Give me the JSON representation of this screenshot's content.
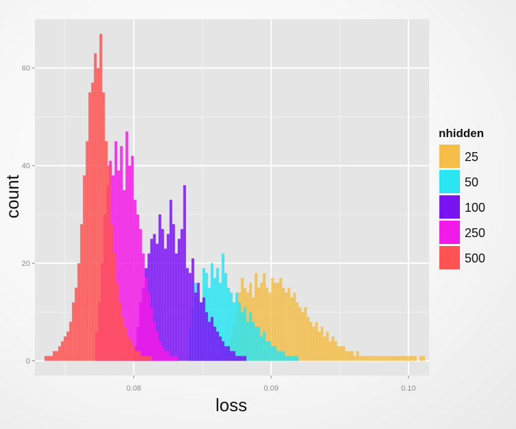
{
  "chart_data": {
    "type": "histogram",
    "xlabel": "loss",
    "ylabel": "count",
    "xlim": [
      0.0728,
      0.1015
    ],
    "ylim": [
      -3,
      70
    ],
    "x_ticks": [
      0.08,
      0.09,
      0.1
    ],
    "x_tick_labels": [
      "0.08",
      "0.09",
      "0.10"
    ],
    "y_ticks": [
      0,
      20,
      40,
      60
    ],
    "y_tick_labels": [
      "0",
      "20",
      "40",
      "60"
    ],
    "grid": true,
    "panel_background": "#e5e5e5",
    "legend": {
      "title": "nhidden",
      "position": "right",
      "entries": [
        "25",
        "50",
        "100",
        "250",
        "500"
      ]
    },
    "series": [
      {
        "name": "25",
        "color": "#F5BE48",
        "bin_start": 0.087,
        "bin_width": 0.0002,
        "values": [
          5,
          7,
          10,
          14,
          17,
          15,
          14,
          16,
          13,
          18,
          15,
          16,
          18,
          15,
          14,
          17,
          16,
          16,
          17,
          15,
          14,
          15,
          13,
          14,
          12,
          11,
          10,
          11,
          9,
          8,
          7,
          8,
          6,
          7,
          5,
          6,
          4,
          5,
          4,
          3,
          3,
          3,
          2,
          2,
          2,
          1,
          2,
          1,
          1,
          1,
          1,
          1,
          1,
          1,
          1,
          1,
          1,
          1,
          1,
          1,
          1,
          1,
          1,
          1,
          1,
          1,
          1,
          1,
          0,
          1,
          1
        ]
      },
      {
        "name": "50",
        "color": "#2CE5F2",
        "bin_start": 0.084,
        "bin_width": 0.0002,
        "values": [
          7,
          11,
          16,
          14,
          12,
          19,
          18,
          15,
          20,
          17,
          19,
          16,
          22,
          18,
          15,
          14,
          12,
          14,
          12,
          10,
          11,
          8,
          10,
          8,
          7,
          7,
          5,
          6,
          4,
          4,
          3,
          3,
          2,
          2,
          2,
          1,
          1,
          1,
          1,
          1
        ]
      },
      {
        "name": "100",
        "color": "#7A13F2",
        "bin_start": 0.08,
        "bin_width": 0.0002,
        "values": [
          3,
          7,
          12,
          15,
          19,
          22,
          25,
          26,
          24,
          30,
          27,
          23,
          26,
          33,
          28,
          22,
          25,
          27,
          36,
          19,
          18,
          21,
          14,
          16,
          12,
          13,
          10,
          8,
          9,
          7,
          6,
          5,
          4,
          3,
          3,
          2,
          2,
          1,
          1,
          1,
          1
        ]
      },
      {
        "name": "250",
        "color": "#F21AE8",
        "bin_start": 0.0772,
        "bin_width": 0.0002,
        "values": [
          6,
          12,
          20,
          30,
          36,
          41,
          38,
          45,
          39,
          44,
          35,
          47,
          40,
          42,
          33,
          30,
          27,
          22,
          17,
          14,
          11,
          8,
          6,
          4,
          3,
          2,
          2,
          1,
          1,
          1
        ]
      },
      {
        "name": "500",
        "color": "#FF5252",
        "bin_start": 0.0735,
        "bin_width": 0.0002,
        "values": [
          1,
          1,
          1,
          2,
          2,
          3,
          4,
          5,
          6,
          8,
          12,
          15,
          20,
          28,
          38,
          45,
          55,
          57,
          63,
          60,
          67,
          55,
          45,
          40,
          28,
          22,
          16,
          12,
          9,
          7,
          5,
          4,
          3,
          2,
          2,
          1,
          1,
          1,
          1
        ]
      }
    ],
    "overlap_colors": {
      "25+50": "#2EE0C6",
      "50+100": "#A51CF0",
      "100+250": "#C41CEC",
      "250+500": "#F51A5C"
    }
  }
}
